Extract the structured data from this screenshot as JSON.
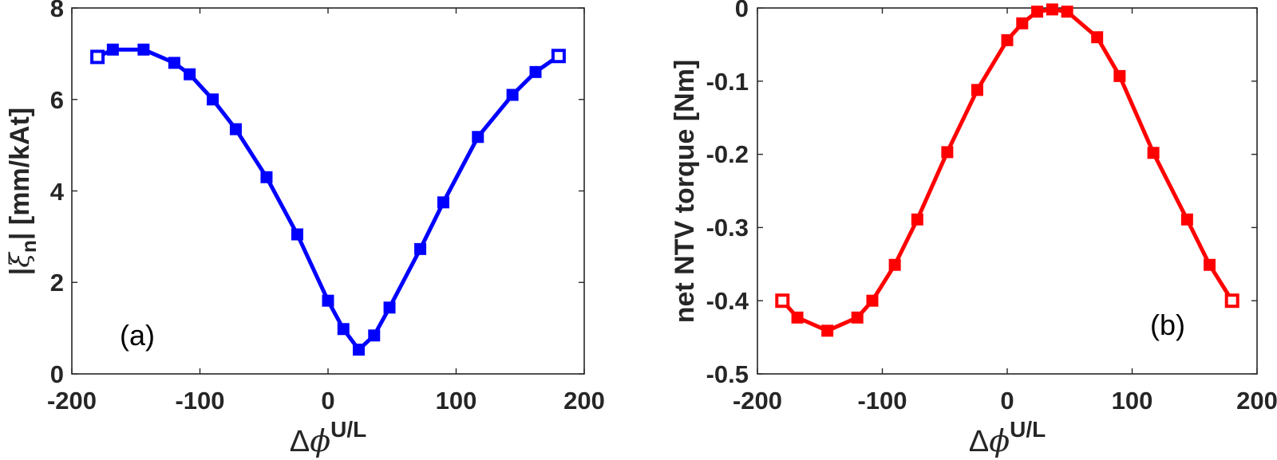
{
  "chart_data": [
    {
      "type": "line",
      "panel_label": "(a)",
      "title": "",
      "xlabel": "Δϕ^U/L",
      "ylabel": "|ξn| [mm/kAt]",
      "xlim": [
        -200,
        200
      ],
      "ylim": [
        0,
        8
      ],
      "xticks": [
        -200,
        -100,
        0,
        100,
        200
      ],
      "yticks": [
        0,
        2,
        4,
        6,
        8
      ],
      "grid": false,
      "legend": null,
      "series": [
        {
          "name": "|xi_n|",
          "color": "#0000ff",
          "marker": "square",
          "x": [
            -180,
            -168,
            -144,
            -120,
            -108,
            -90,
            -72,
            -48,
            -24,
            0,
            12,
            24,
            36,
            48,
            72,
            90,
            117,
            144,
            162,
            180
          ],
          "y": [
            6.93,
            7.09,
            7.09,
            6.8,
            6.55,
            6.0,
            5.35,
            4.3,
            3.05,
            1.6,
            0.98,
            0.53,
            0.84,
            1.45,
            2.73,
            3.75,
            5.18,
            6.1,
            6.6,
            6.95
          ]
        }
      ]
    },
    {
      "type": "line",
      "panel_label": "(b)",
      "title": "",
      "xlabel": "Δϕ^U/L",
      "ylabel": "net NTV torque [Nm]",
      "xlim": [
        -200,
        200
      ],
      "ylim": [
        -0.5,
        0
      ],
      "xticks": [
        -200,
        -100,
        0,
        100,
        200
      ],
      "yticks": [
        -0.5,
        -0.4,
        -0.3,
        -0.2,
        -0.1,
        0
      ],
      "grid": false,
      "legend": null,
      "series": [
        {
          "name": "net NTV torque",
          "color": "#ff0000",
          "marker": "square",
          "x": [
            -180,
            -168,
            -144,
            -120,
            -108,
            -90,
            -72,
            -48,
            -24,
            0,
            12,
            24,
            36,
            48,
            72,
            90,
            117,
            144,
            162,
            180
          ],
          "y": [
            -0.4,
            -0.423,
            -0.441,
            -0.423,
            -0.4,
            -0.351,
            -0.289,
            -0.197,
            -0.112,
            -0.044,
            -0.021,
            -0.005,
            -0.002,
            -0.005,
            -0.04,
            -0.093,
            -0.198,
            -0.289,
            -0.351,
            -0.4
          ]
        }
      ]
    }
  ],
  "panels": [
    {
      "panel_label": "(a)",
      "ylabel_main": "|",
      "ylabel_xi": "ξ",
      "ylabel_sub": "n",
      "ylabel_rest": "| [mm/kAt]",
      "xlabel_delta": "Δ",
      "xlabel_phi": "ϕ",
      "xlabel_sup": "U/L",
      "xtick_labels": [
        "-200",
        "-100",
        "0",
        "100",
        "200"
      ],
      "ytick_labels": [
        "0",
        "2",
        "4",
        "6",
        "8"
      ]
    },
    {
      "panel_label": "(b)",
      "ylabel": "net NTV torque [Nm]",
      "xlabel_delta": "Δ",
      "xlabel_phi": "ϕ",
      "xlabel_sup": "U/L",
      "xtick_labels": [
        "-200",
        "-100",
        "0",
        "100",
        "200"
      ],
      "ytick_labels": [
        "-0.5",
        "-0.4",
        "-0.3",
        "-0.2",
        "-0.1",
        "0"
      ]
    }
  ]
}
